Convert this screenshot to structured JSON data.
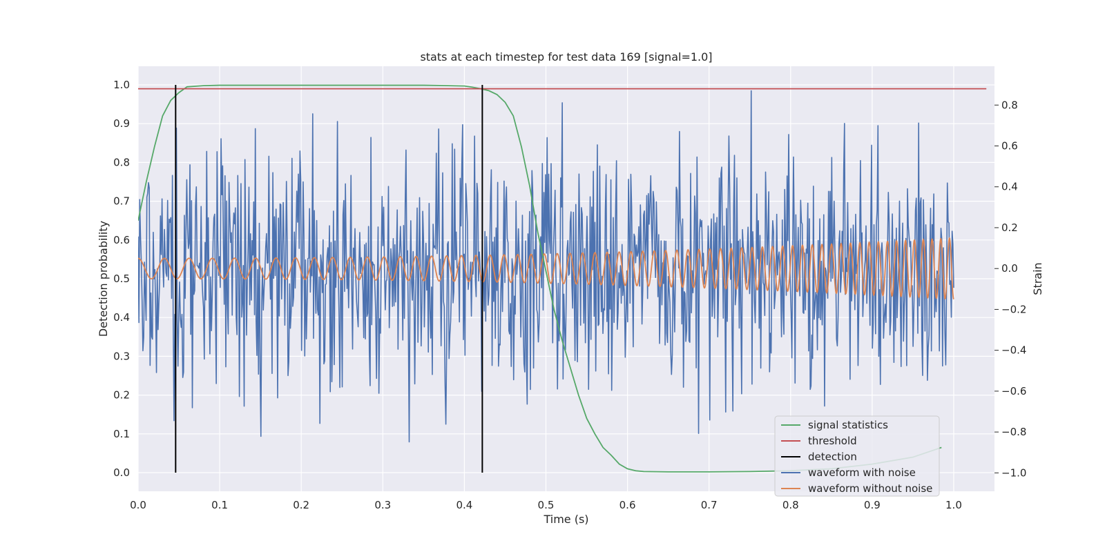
{
  "chart_data": {
    "type": "line",
    "title": "stats at each timestep for test data 169 [signal=1.0]",
    "xlabel": "Time (s)",
    "ylabel": "Detection probability",
    "y2label": "Strain",
    "xlim": [
      0.0,
      1.05
    ],
    "ylim": [
      -0.048,
      1.048
    ],
    "y2lim": [
      -1.09,
      0.99
    ],
    "xticks": [
      0.0,
      0.1,
      0.2,
      0.3,
      0.4,
      0.5,
      0.6,
      0.7,
      0.8,
      0.9,
      1.0
    ],
    "xtick_labels": [
      "0.0",
      "0.1",
      "0.2",
      "0.3",
      "0.4",
      "0.5",
      "0.6",
      "0.7",
      "0.8",
      "0.9",
      "1.0"
    ],
    "yticks": [
      0.0,
      0.1,
      0.2,
      0.3,
      0.4,
      0.5,
      0.6,
      0.7,
      0.8,
      0.9,
      1.0
    ],
    "ytick_labels": [
      "0.0",
      "0.1",
      "0.2",
      "0.3",
      "0.4",
      "0.5",
      "0.6",
      "0.7",
      "0.8",
      "0.9",
      "1.0"
    ],
    "y2ticks": [
      -1.0,
      -0.8,
      -0.6,
      -0.4,
      -0.2,
      0.0,
      0.2,
      0.4,
      0.6,
      0.8
    ],
    "y2tick_labels": [
      "−1.0",
      "−0.8",
      "−0.6",
      "−0.4",
      "−0.2",
      "0.0",
      "0.2",
      "0.4",
      "0.6",
      "0.8"
    ],
    "grid": true,
    "legend_position": "lower-right",
    "colors": {
      "signal": "#55a868",
      "threshold": "#c44e52",
      "detection": "#000000",
      "noisy": "#4c72b0",
      "clean": "#dd8452",
      "plot_bg": "#eaeaf2",
      "grid": "#ffffff"
    },
    "series": [
      {
        "name": "signal statistics",
        "axis": "left",
        "x": [
          0.0,
          0.01,
          0.02,
          0.03,
          0.04,
          0.05,
          0.06,
          0.08,
          0.1,
          0.15,
          0.2,
          0.25,
          0.3,
          0.35,
          0.38,
          0.4,
          0.41,
          0.42,
          0.43,
          0.44,
          0.45,
          0.46,
          0.47,
          0.48,
          0.49,
          0.5,
          0.51,
          0.52,
          0.53,
          0.54,
          0.55,
          0.56,
          0.57,
          0.58,
          0.59,
          0.6,
          0.61,
          0.62,
          0.65,
          0.7,
          0.75,
          0.8,
          0.85,
          0.9,
          0.95,
          0.985
        ],
        "y": [
          0.65,
          0.75,
          0.84,
          0.92,
          0.96,
          0.98,
          0.995,
          0.998,
          0.999,
          0.999,
          0.999,
          0.999,
          0.999,
          0.999,
          0.998,
          0.997,
          0.994,
          0.99,
          0.985,
          0.975,
          0.955,
          0.92,
          0.84,
          0.74,
          0.62,
          0.52,
          0.42,
          0.34,
          0.27,
          0.2,
          0.14,
          0.1,
          0.065,
          0.045,
          0.022,
          0.01,
          0.005,
          0.003,
          0.002,
          0.002,
          0.003,
          0.005,
          0.01,
          0.022,
          0.04,
          0.065
        ]
      },
      {
        "name": "threshold",
        "axis": "left",
        "x": [
          0.0,
          1.04
        ],
        "y": [
          0.99,
          0.99
        ]
      },
      {
        "name": "detection",
        "axis": "left",
        "vlines": [
          0.046,
          0.422
        ],
        "y": [
          0.0,
          1.0
        ]
      },
      {
        "name": "waveform with noise",
        "axis": "right",
        "x_start": 0.0,
        "x_end": 1.0,
        "samples": 1024,
        "amplitude": 0.3,
        "y_min": -0.87,
        "y_max": 0.88
      },
      {
        "name": "waveform without noise",
        "axis": "right",
        "x_start": 0.0,
        "x_end": 1.0,
        "freq_start": 30,
        "freq_end": 95,
        "amp_start": 0.05,
        "amp_end": 0.15
      }
    ]
  }
}
